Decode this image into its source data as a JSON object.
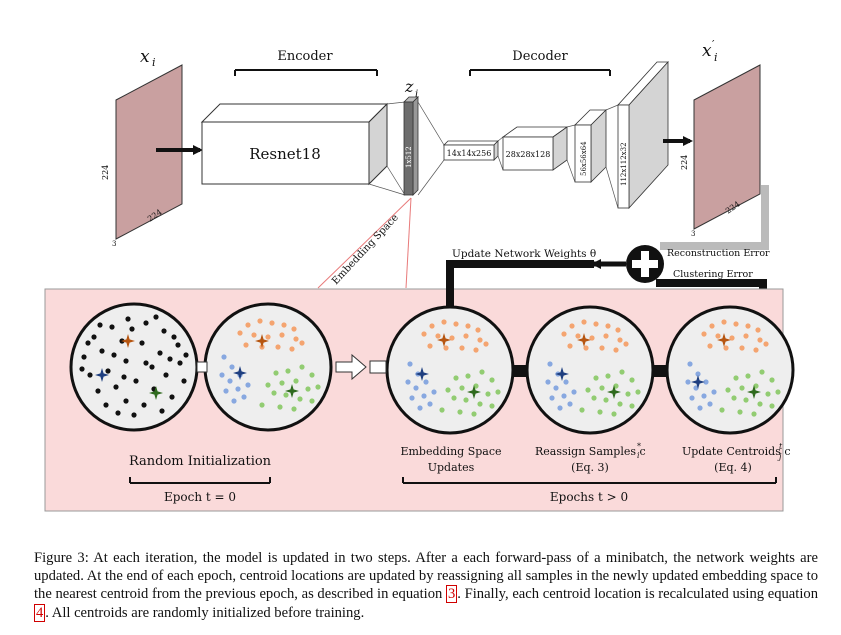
{
  "diagram": {
    "input": {
      "symbol_main": "x",
      "symbol_sub": "i",
      "dim_side": "224",
      "dim_depth": "224",
      "dim_channels": "3"
    },
    "encoder_label": "Encoder",
    "encoder_block": "Resnet18",
    "latent": {
      "symbol_main": "z",
      "symbol_sub": "i",
      "dim": "1x512"
    },
    "decoder_label": "Decoder",
    "decoder_blocks": [
      "14x14x256",
      "28x28x128",
      "56x56x64",
      "112x112x32"
    ],
    "output": {
      "symbol_main": "x",
      "symbol_sub": "i",
      "symbol_prime": "′",
      "dim_side": "224",
      "dim_depth": "224",
      "dim_channels": "3"
    },
    "embedding_space_label": "Embedding Space",
    "update_weights_label": "Update Network Weights θ",
    "reconstruction_error_label": "Reconstruction Error",
    "clustering_error_label": "Clustering Error",
    "random_init_label": "Random Initialization",
    "embedding_updates_label": [
      "Embedding Space",
      "Updates"
    ],
    "reassign_label": [
      "Reassign Samples c",
      "(Eq. 3)"
    ],
    "reassign_sub": "i",
    "reassign_sup": "*",
    "update_centroids_label": [
      "Update Centroids c",
      "(Eq. 4)"
    ],
    "update_centroids_sub": "j",
    "update_centroids_sup": "t",
    "epoch0_label": "Epoch t = 0",
    "epochs_label": "Epochs t > 0",
    "colors": {
      "input_image": "#c9a0a0",
      "panel_bg": "#fadada",
      "circle_bg": "#eeeeee",
      "orange": "#f4a470",
      "blue": "#88a8e0",
      "green": "#92cc72",
      "centroid_orange": "#b65510",
      "centroid_blue": "#1f3f80",
      "centroid_green": "#2f6a1e"
    }
  },
  "caption": {
    "part1": "Figure 3: At each iteration, the model is updated in two steps. After a each forward-pass of a minibatch, the network weights are updated. At the end of each epoch, centroid locations are updated by reassigning all samples in the newly updated embedding space to the nearest centroid from the previous epoch, as described in equation ",
    "ref1": "3",
    "part2": ". Finally, each centroid location is recalculated using equation ",
    "ref2": "4",
    "part3": ". All centroids are randomly initialized before training."
  }
}
